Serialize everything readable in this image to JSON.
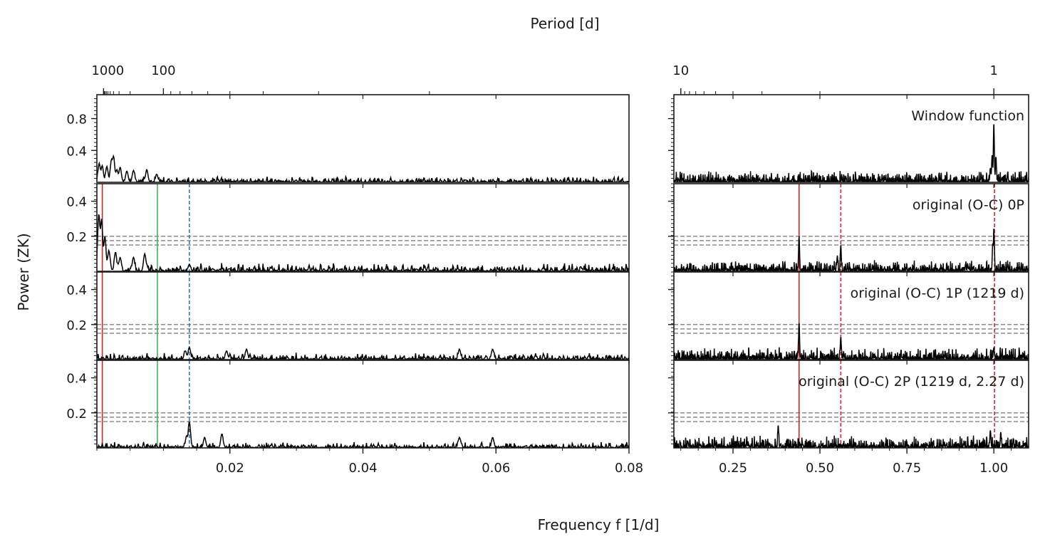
{
  "figure": {
    "top_label": "Period [d]",
    "bottom_label": "Frequency f [1/d]",
    "y_label": "Power (ZK)"
  },
  "chart_data": {
    "type": "line",
    "rows": 4,
    "columns": 2,
    "panel_labels": [
      "Window function",
      "original (O-C) 0P",
      "original (O-C) 1P (1219 d)",
      "original (O-C) 2P (1219 d, 2.27 d)"
    ],
    "left": {
      "xlim": [
        0,
        0.08
      ],
      "xticks": [
        0.02,
        0.04,
        0.06,
        0.08
      ],
      "xtick_labels": [
        "0.02",
        "0.04",
        "0.06",
        "0.08"
      ],
      "period_ticks": [
        1000,
        100
      ],
      "period_tick_labels": [
        "1000",
        "100"
      ]
    },
    "right": {
      "xlim": [
        0.08,
        1.1
      ],
      "xticks": [
        0.25,
        0.5,
        0.75,
        1.0
      ],
      "xtick_labels": [
        "0.25",
        "0.50",
        "0.75",
        "1.00"
      ],
      "period_ticks": [
        10,
        1
      ],
      "period_tick_labels": [
        "10",
        "1"
      ]
    },
    "ylims": [
      [
        0,
        1.1
      ],
      [
        0,
        0.5
      ],
      [
        0,
        0.5
      ],
      [
        0,
        0.5
      ]
    ],
    "yticks": [
      [
        0.4,
        0.8
      ],
      [
        0.2,
        0.4
      ],
      [
        0.2,
        0.4
      ],
      [
        0.2,
        0.4
      ]
    ],
    "ytick_labels": [
      [
        "0.4",
        "0.8"
      ],
      [
        "0.2",
        "0.4"
      ],
      [
        "0.2",
        "0.4"
      ],
      [
        "0.2",
        "0.4"
      ]
    ],
    "fap_levels": [
      0.15,
      0.175,
      0.2
    ],
    "marker_lines": [
      {
        "side": "left",
        "freq": 0.00082,
        "color": "#d62728",
        "style": "solid",
        "rows": [
          1,
          2,
          3
        ]
      },
      {
        "side": "left",
        "freq": 0.0091,
        "color": "#4caf50",
        "style": "solid",
        "rows": [
          1,
          2,
          3
        ]
      },
      {
        "side": "left",
        "freq": 0.0139,
        "color": "#3b75af",
        "style": "dashed",
        "rows": [
          1,
          2,
          3
        ]
      },
      {
        "side": "right",
        "freq": 0.44,
        "color": "#d62728",
        "style": "solid",
        "rows": [
          1,
          2,
          3
        ]
      },
      {
        "side": "right",
        "freq": 0.56,
        "color": "#d62728",
        "style": "dashed",
        "rows": [
          1,
          2,
          3
        ]
      },
      {
        "side": "right",
        "freq": 1.002,
        "color": "#d62728",
        "style": "dashed",
        "rows": [
          1,
          2,
          3
        ]
      }
    ],
    "series": [
      {
        "name": "Window function",
        "left_peaks": [
          [
            0.00035,
            0.24
          ],
          [
            0.0008,
            0.21
          ],
          [
            0.0015,
            0.2
          ],
          [
            0.0022,
            0.28
          ],
          [
            0.0025,
            0.33
          ],
          [
            0.003,
            0.16
          ],
          [
            0.0035,
            0.19
          ],
          [
            0.0045,
            0.14
          ],
          [
            0.0055,
            0.15
          ],
          [
            0.0075,
            0.16
          ],
          [
            0.009,
            0.1
          ]
        ],
        "right_peaks": [
          [
            1.0,
            0.75
          ],
          [
            0.995,
            0.34
          ],
          [
            1.006,
            0.32
          ],
          [
            0.99,
            0.18
          ]
        ],
        "left_noise": 0.045,
        "right_noise": 0.09
      },
      {
        "name": "original (O-C) 0P",
        "left_peaks": [
          [
            0.0003,
            0.33
          ],
          [
            0.0007,
            0.3
          ],
          [
            0.0012,
            0.2
          ],
          [
            0.0018,
            0.12
          ],
          [
            0.0028,
            0.11
          ],
          [
            0.0035,
            0.08
          ],
          [
            0.0055,
            0.08
          ],
          [
            0.0072,
            0.1
          ],
          [
            0.0139,
            0.04
          ]
        ],
        "right_peaks": [
          [
            0.44,
            0.2
          ],
          [
            0.56,
            0.15
          ],
          [
            0.55,
            0.09
          ],
          [
            1.0,
            0.25
          ],
          [
            0.997,
            0.16
          ]
        ],
        "left_noise": 0.03,
        "right_noise": 0.04
      },
      {
        "name": "original (O-C) 1P (1219 d)",
        "left_peaks": [
          [
            0.0139,
            0.07
          ],
          [
            0.0133,
            0.05
          ],
          [
            0.0195,
            0.05
          ],
          [
            0.0225,
            0.06
          ],
          [
            0.0545,
            0.06
          ],
          [
            0.0595,
            0.06
          ]
        ],
        "right_peaks": [
          [
            0.44,
            0.21
          ],
          [
            0.56,
            0.13
          ],
          [
            1.0,
            0.07
          ]
        ],
        "left_noise": 0.025,
        "right_noise": 0.045
      },
      {
        "name": "original (O-C) 2P (1219 d, 2.27 d)",
        "left_peaks": [
          [
            0.0139,
            0.15
          ],
          [
            0.0135,
            0.07
          ],
          [
            0.0188,
            0.08
          ],
          [
            0.0162,
            0.06
          ],
          [
            0.0545,
            0.06
          ],
          [
            0.0595,
            0.06
          ]
        ],
        "right_peaks": [
          [
            0.38,
            0.13
          ],
          [
            0.99,
            0.1
          ],
          [
            1.02,
            0.09
          ]
        ],
        "left_noise": 0.022,
        "right_noise": 0.045
      }
    ]
  }
}
